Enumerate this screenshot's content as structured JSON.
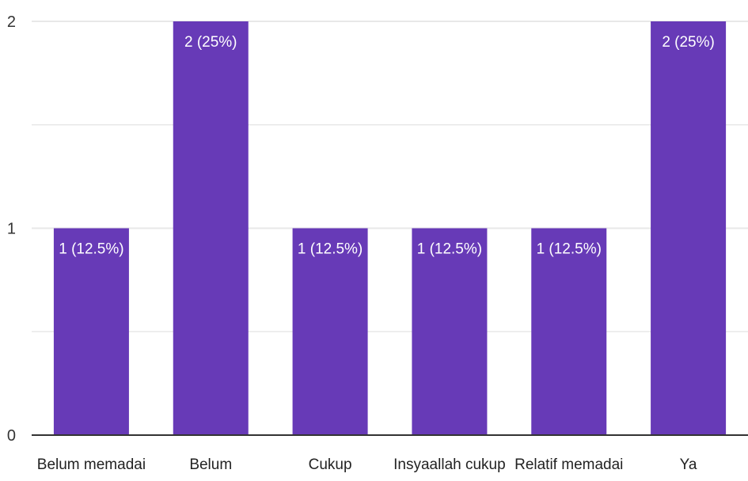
{
  "chart_data": {
    "type": "bar",
    "categories": [
      "Belum memadai",
      "Belum",
      "Cukup",
      "Insyaallah cukup",
      "Relatif memadai",
      "Ya"
    ],
    "values": [
      1,
      2,
      1,
      1,
      1,
      2
    ],
    "data_labels": [
      "1 (12.5%)",
      "2 (25%)",
      "1 (12.5%)",
      "1 (12.5%)",
      "1 (12.5%)",
      "2 (25%)"
    ],
    "y_ticks": [
      0,
      1,
      2
    ],
    "ylim": [
      0,
      2
    ],
    "grid": true,
    "bar_color": "#673ab7",
    "grid_color": "#e8e8e8",
    "axis_color": "#333333",
    "title": "",
    "xlabel": "",
    "ylabel": ""
  }
}
